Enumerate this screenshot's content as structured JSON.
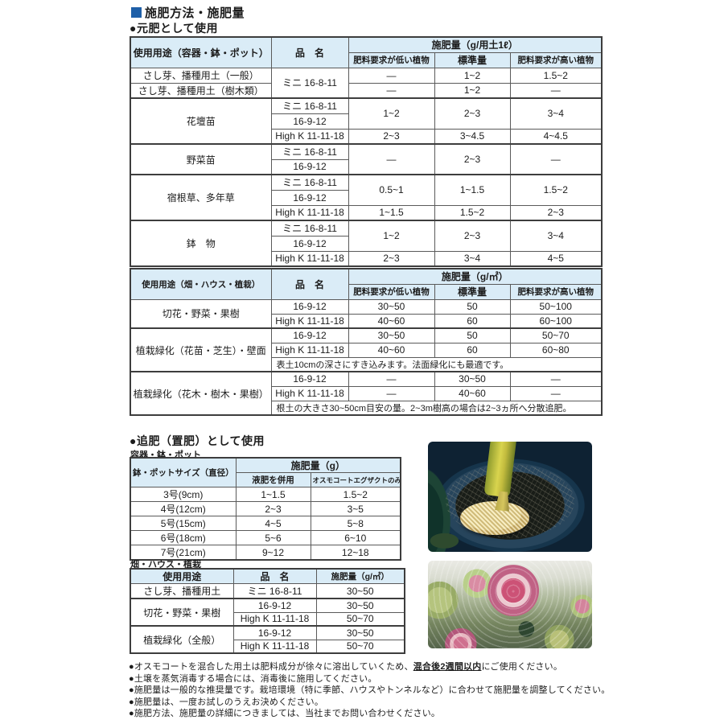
{
  "page": {
    "title": "施肥方法・施肥量"
  },
  "colors": {
    "accent": "#1e5fa8",
    "table_header_bg": "#daecf7",
    "border_dark": "#3d3d3d"
  },
  "headings": {
    "base": "●元肥として使用",
    "topdress": "●追肥（置肥）として使用",
    "sub_container": "容器・鉢・ポット",
    "sub_field": "畑・ハウス・植栽"
  },
  "tables": {
    "t1": {
      "name": "base-fertilizer-container-table",
      "cols": [
        175,
        96,
        107,
        94,
        114
      ],
      "header": [
        [
          {
            "t": "使用用途（容器・鉢・ポット）",
            "rs": 2,
            "c": "h"
          },
          {
            "t": "品　名",
            "rs": 2,
            "c": "h"
          },
          {
            "t": "施肥量（g/用土1ℓ）",
            "cs": 3,
            "c": "h"
          }
        ],
        [
          {
            "t": "肥料要求が低い植物",
            "c": "h f11"
          },
          {
            "t": "標準量",
            "c": "h"
          },
          {
            "t": "肥料要求が高い植物",
            "c": "h f11"
          }
        ]
      ],
      "rows": [
        [
          {
            "t": "さし芽、播種用土（一般）",
            "c": "u"
          },
          {
            "t": "ミニ 16-8-11",
            "rs": 2
          },
          {
            "t": "—"
          },
          {
            "t": "1~2"
          },
          {
            "t": "1.5~2"
          }
        ],
        [
          {
            "t": "さし芽、播種用土（樹木類）",
            "c": "u"
          },
          {
            "t": "—"
          },
          {
            "t": "1~2"
          },
          {
            "t": "—"
          }
        ],
        [
          {
            "t": "花壇苗",
            "rs": 3,
            "c": "u gt"
          },
          {
            "t": "ミニ 16-8-11",
            "c": "gt"
          },
          {
            "t": "1~2",
            "rs": 2,
            "c": "gt"
          },
          {
            "t": "2~3",
            "rs": 2,
            "c": "gt"
          },
          {
            "t": "3~4",
            "rs": 2,
            "c": "gt"
          }
        ],
        [
          {
            "t": "16-9-12"
          }
        ],
        [
          {
            "t": "High K 11-11-18"
          },
          {
            "t": "2~3"
          },
          {
            "t": "3~4.5"
          },
          {
            "t": "4~4.5"
          }
        ],
        [
          {
            "t": "野菜苗",
            "rs": 2,
            "c": "u gt"
          },
          {
            "t": "ミニ 16-8-11",
            "c": "gt"
          },
          {
            "t": "—",
            "rs": 2,
            "c": "gt"
          },
          {
            "t": "2~3",
            "rs": 2,
            "c": "gt"
          },
          {
            "t": "—",
            "rs": 2,
            "c": "gt"
          }
        ],
        [
          {
            "t": "16-9-12"
          }
        ],
        [
          {
            "t": "宿根草、多年草",
            "rs": 3,
            "c": "u gt"
          },
          {
            "t": "ミニ 16-8-11",
            "c": "gt"
          },
          {
            "t": "0.5~1",
            "rs": 2,
            "c": "gt"
          },
          {
            "t": "1~1.5",
            "rs": 2,
            "c": "gt"
          },
          {
            "t": "1.5~2",
            "rs": 2,
            "c": "gt"
          }
        ],
        [
          {
            "t": "16-9-12"
          }
        ],
        [
          {
            "t": "High K 11-11-18"
          },
          {
            "t": "1~1.5"
          },
          {
            "t": "1.5~2"
          },
          {
            "t": "2~3"
          }
        ],
        [
          {
            "t": "鉢　物",
            "rs": 3,
            "c": "u gt"
          },
          {
            "t": "ミニ 16-8-11",
            "c": "gt"
          },
          {
            "t": "1~2",
            "rs": 2,
            "c": "gt"
          },
          {
            "t": "2~3",
            "rs": 2,
            "c": "gt"
          },
          {
            "t": "3~4",
            "rs": 2,
            "c": "gt"
          }
        ],
        [
          {
            "t": "16-9-12"
          }
        ],
        [
          {
            "t": "High K 11-11-18"
          },
          {
            "t": "2~3"
          },
          {
            "t": "3~4"
          },
          {
            "t": "4~5"
          }
        ]
      ]
    },
    "t2": {
      "name": "base-fertilizer-field-table",
      "cols": [
        175,
        96,
        107,
        94,
        114
      ],
      "header": [
        [
          {
            "t": "使用用途（畑・ハウス・植栽）",
            "rs": 2,
            "c": "h f11"
          },
          {
            "t": "品　名",
            "rs": 2,
            "c": "h"
          },
          {
            "t": "施肥量（g/㎡）",
            "cs": 3,
            "c": "h"
          }
        ],
        [
          {
            "t": "肥料要求が低い植物",
            "c": "h f11"
          },
          {
            "t": "標準量",
            "c": "h"
          },
          {
            "t": "肥料要求が高い植物",
            "c": "h f11"
          }
        ]
      ],
      "rows": [
        [
          {
            "t": "切花・野菜・果樹",
            "rs": 2,
            "c": "u"
          },
          {
            "t": "16-9-12"
          },
          {
            "t": "30~50"
          },
          {
            "t": "50"
          },
          {
            "t": "50~100"
          }
        ],
        [
          {
            "t": "High K 11-11-18"
          },
          {
            "t": "40~60"
          },
          {
            "t": "60"
          },
          {
            "t": "60~100"
          }
        ],
        [
          {
            "t": "植栽緑化（花苗・芝生）・壁面",
            "rs": 3,
            "c": "u gt f11"
          },
          {
            "t": "16-9-12",
            "c": "gt"
          },
          {
            "t": "30~50",
            "c": "gt"
          },
          {
            "t": "50",
            "c": "gt"
          },
          {
            "t": "50~70",
            "c": "gt"
          }
        ],
        [
          {
            "t": "High K 11-11-18"
          },
          {
            "t": "40~60"
          },
          {
            "t": "60"
          },
          {
            "t": "60~80"
          }
        ],
        [
          {
            "t": "表土10cmの深さにすき込みます。法面緑化にも最適です。",
            "cs": 4,
            "c": "note"
          }
        ],
        [
          {
            "t": "植栽緑化（花木・樹木・果樹）",
            "rs": 3,
            "c": "u gt f11"
          },
          {
            "t": "16-9-12",
            "c": "gt"
          },
          {
            "t": "—",
            "c": "gt"
          },
          {
            "t": "30~50",
            "c": "gt"
          },
          {
            "t": "—",
            "c": "gt"
          }
        ],
        [
          {
            "t": "High K 11-11-18"
          },
          {
            "t": "—"
          },
          {
            "t": "40~60"
          },
          {
            "t": "—"
          }
        ],
        [
          {
            "t": "根土の大きさ30~50cm目安の量。2~3m樹高の場合は2~3ヵ所へ分散追肥。",
            "cs": 4,
            "c": "note"
          }
        ]
      ]
    },
    "t3": {
      "name": "topdress-pot-size-table",
      "cols": [
        131,
        93,
        112
      ],
      "header": [
        [
          {
            "t": "鉢・ポットサイズ（直径）",
            "rs": 2,
            "c": "h f11"
          },
          {
            "t": "施肥量（g）",
            "cs": 2,
            "c": "h"
          }
        ],
        [
          {
            "t": "液肥を併用",
            "c": "h f11"
          },
          {
            "t": "オスモコートエグザクトのみ",
            "c": "h f9"
          }
        ]
      ],
      "rows": [
        [
          {
            "t": "3号(9cm)",
            "c": "u"
          },
          {
            "t": "1~1.5"
          },
          {
            "t": "1.5~2"
          }
        ],
        [
          {
            "t": "4号(12cm)",
            "c": "u"
          },
          {
            "t": "2~3"
          },
          {
            "t": "3~5"
          }
        ],
        [
          {
            "t": "5号(15cm)",
            "c": "u"
          },
          {
            "t": "4~5"
          },
          {
            "t": "5~8"
          }
        ],
        [
          {
            "t": "6号(18cm)",
            "c": "u"
          },
          {
            "t": "5~6"
          },
          {
            "t": "6~10"
          }
        ],
        [
          {
            "t": "7号(21cm)",
            "c": "u"
          },
          {
            "t": "9~12"
          },
          {
            "t": "12~18"
          }
        ]
      ]
    },
    "t4": {
      "name": "topdress-field-table",
      "cols": [
        128,
        103,
        110
      ],
      "header": [
        [
          {
            "t": "使用用途",
            "c": "h"
          },
          {
            "t": "品　名",
            "c": "h"
          },
          {
            "t": "施肥量（g/㎡）",
            "c": "h f11"
          }
        ]
      ],
      "rows": [
        [
          {
            "t": "さし芽、播種用土",
            "c": "u"
          },
          {
            "t": "ミニ 16-8-11"
          },
          {
            "t": "30~50"
          }
        ],
        [
          {
            "t": "切花・野菜・果樹",
            "rs": 2,
            "c": "u gt"
          },
          {
            "t": "16-9-12",
            "c": "gt"
          },
          {
            "t": "30~50",
            "c": "gt"
          }
        ],
        [
          {
            "t": "High K 11-11-18"
          },
          {
            "t": "50~70"
          }
        ],
        [
          {
            "t": "植栽緑化（全般）",
            "rs": 2,
            "c": "u gt"
          },
          {
            "t": "16-9-12",
            "c": "gt"
          },
          {
            "t": "30~50",
            "c": "gt"
          }
        ],
        [
          {
            "t": "High K 11-11-18"
          },
          {
            "t": "50~70"
          }
        ]
      ]
    }
  },
  "photos": [
    {
      "name": "fertilizer-granules-pot-photo",
      "description": "yellow fertilizer granules poured from dispenser into dark pot of soil"
    },
    {
      "name": "hydrangea-flowers-photo",
      "description": "pink white-edged hydrangea flower clusters with green buds"
    }
  ],
  "notes": [
    {
      "pre": "●オスモコートを混合した用土は肥料成分が徐々に溶出していくため、",
      "em": "混合後2週間以内",
      "post": "にご使用ください。"
    },
    {
      "pre": "●土壌を蒸気消毒する場合には、消毒後に施用してください。",
      "em": "",
      "post": ""
    },
    {
      "pre": "●施肥量は一般的な推奨量です。栽培環境（特に季節、ハウスやトンネルなど）に合わせて施肥量を調整してください。",
      "em": "",
      "post": ""
    },
    {
      "pre": "●施肥量は、一度お試しのうえお決めください。",
      "em": "",
      "post": ""
    },
    {
      "pre": "●施肥方法、施肥量の詳細につきましては、当社までお問い合わせください。",
      "em": "",
      "post": ""
    }
  ]
}
